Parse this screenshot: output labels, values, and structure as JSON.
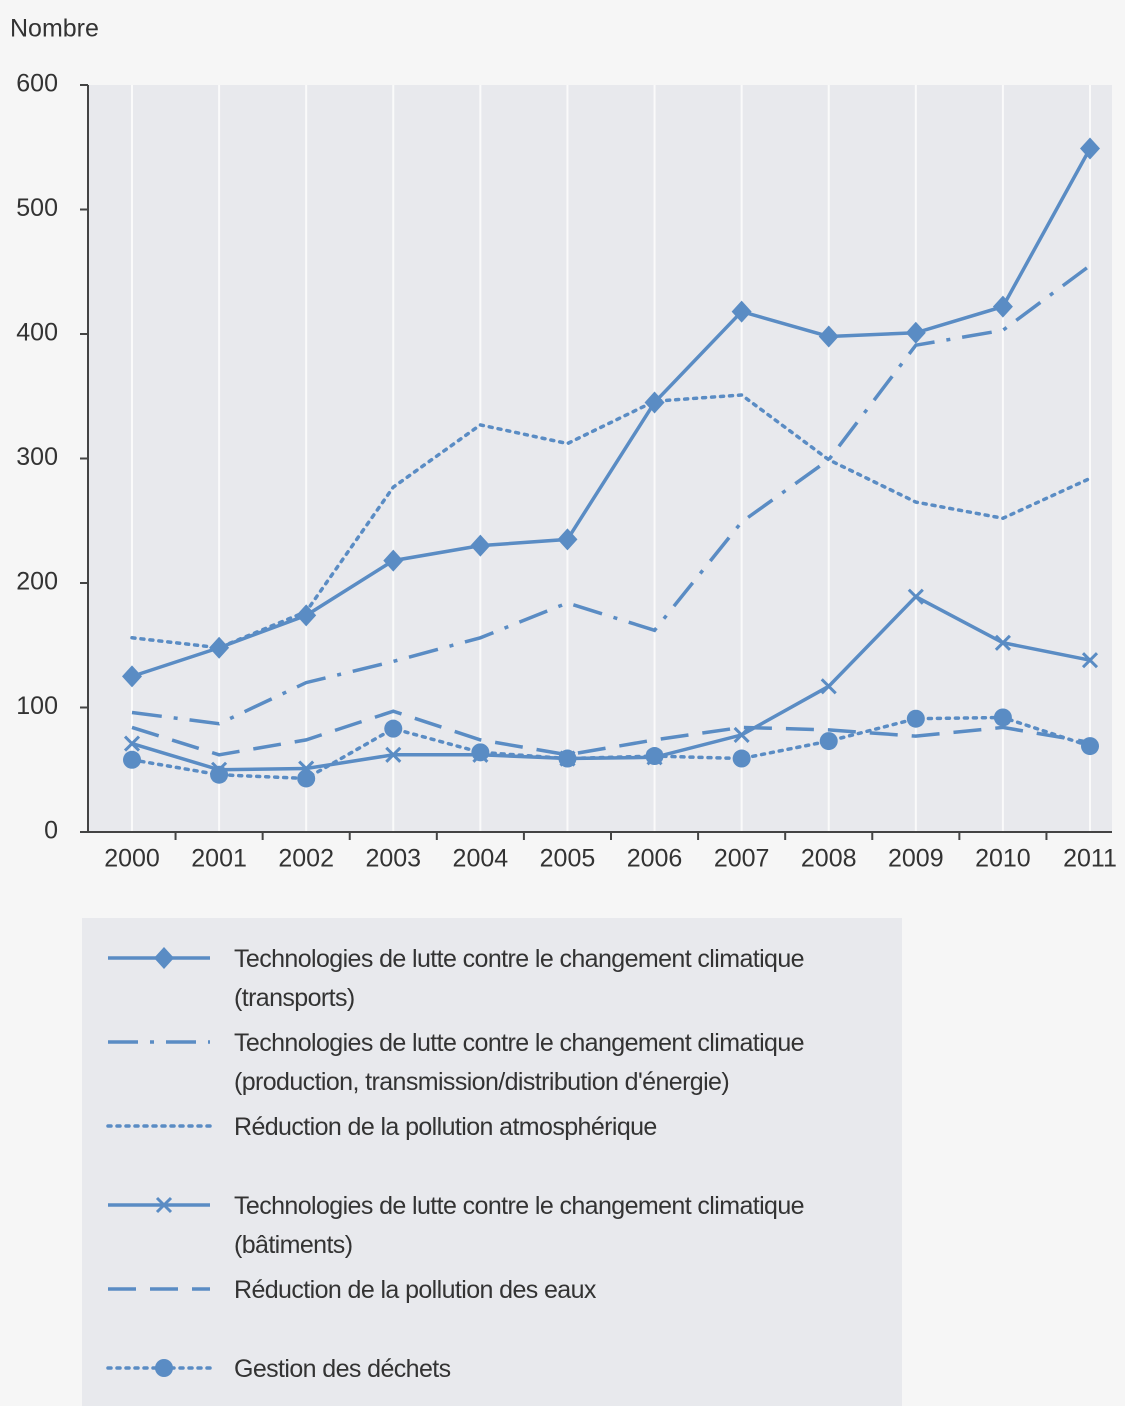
{
  "chart_data": {
    "type": "line",
    "y_label": "Nombre",
    "categories": [
      "2000",
      "2001",
      "2002",
      "2003",
      "2004",
      "2005",
      "2006",
      "2007",
      "2008",
      "2009",
      "2010",
      "2011"
    ],
    "ylim": [
      0,
      600
    ],
    "yticks": [
      0,
      100,
      200,
      300,
      400,
      500,
      600
    ],
    "grid": true,
    "series": [
      {
        "name": "Technologies de lutte contre le changement climatique (transports)",
        "color": "#5a8cc4",
        "dash": "solid",
        "marker": "diamond",
        "values": [
          125,
          148,
          174,
          218,
          230,
          235,
          345,
          418,
          398,
          401,
          422,
          549
        ]
      },
      {
        "name": "Technologies de lutte contre le changement climatique (production, transmission/distribution d'énergie)",
        "color": "#5a8cc4",
        "dash": "dashdot",
        "marker": "none",
        "values": [
          96,
          87,
          120,
          137,
          156,
          184,
          162,
          249,
          299,
          391,
          403,
          455
        ]
      },
      {
        "name": "Réduction de la pollution atmosphérique",
        "color": "#5a8cc4",
        "dash": "dotted",
        "marker": "none",
        "values": [
          156,
          148,
          177,
          277,
          327,
          312,
          346,
          351,
          299,
          265,
          252,
          284
        ]
      },
      {
        "name": "Technologies de lutte contre le changement climatique (bâtiments)",
        "color": "#5a8cc4",
        "dash": "solid",
        "marker": "x",
        "values": [
          71,
          50,
          51,
          62,
          62,
          59,
          60,
          78,
          117,
          189,
          152,
          138
        ]
      },
      {
        "name": "Réduction de la pollution des eaux",
        "color": "#5a8cc4",
        "dash": "dashed",
        "marker": "none",
        "values": [
          84,
          62,
          74,
          97,
          74,
          62,
          74,
          84,
          82,
          77,
          84,
          72
        ]
      },
      {
        "name": "Gestion des déchets",
        "color": "#5a8cc4",
        "dash": "dotted",
        "marker": "circle",
        "values": [
          58,
          46,
          43,
          83,
          64,
          59,
          61,
          59,
          73,
          91,
          92,
          69
        ]
      }
    ]
  }
}
